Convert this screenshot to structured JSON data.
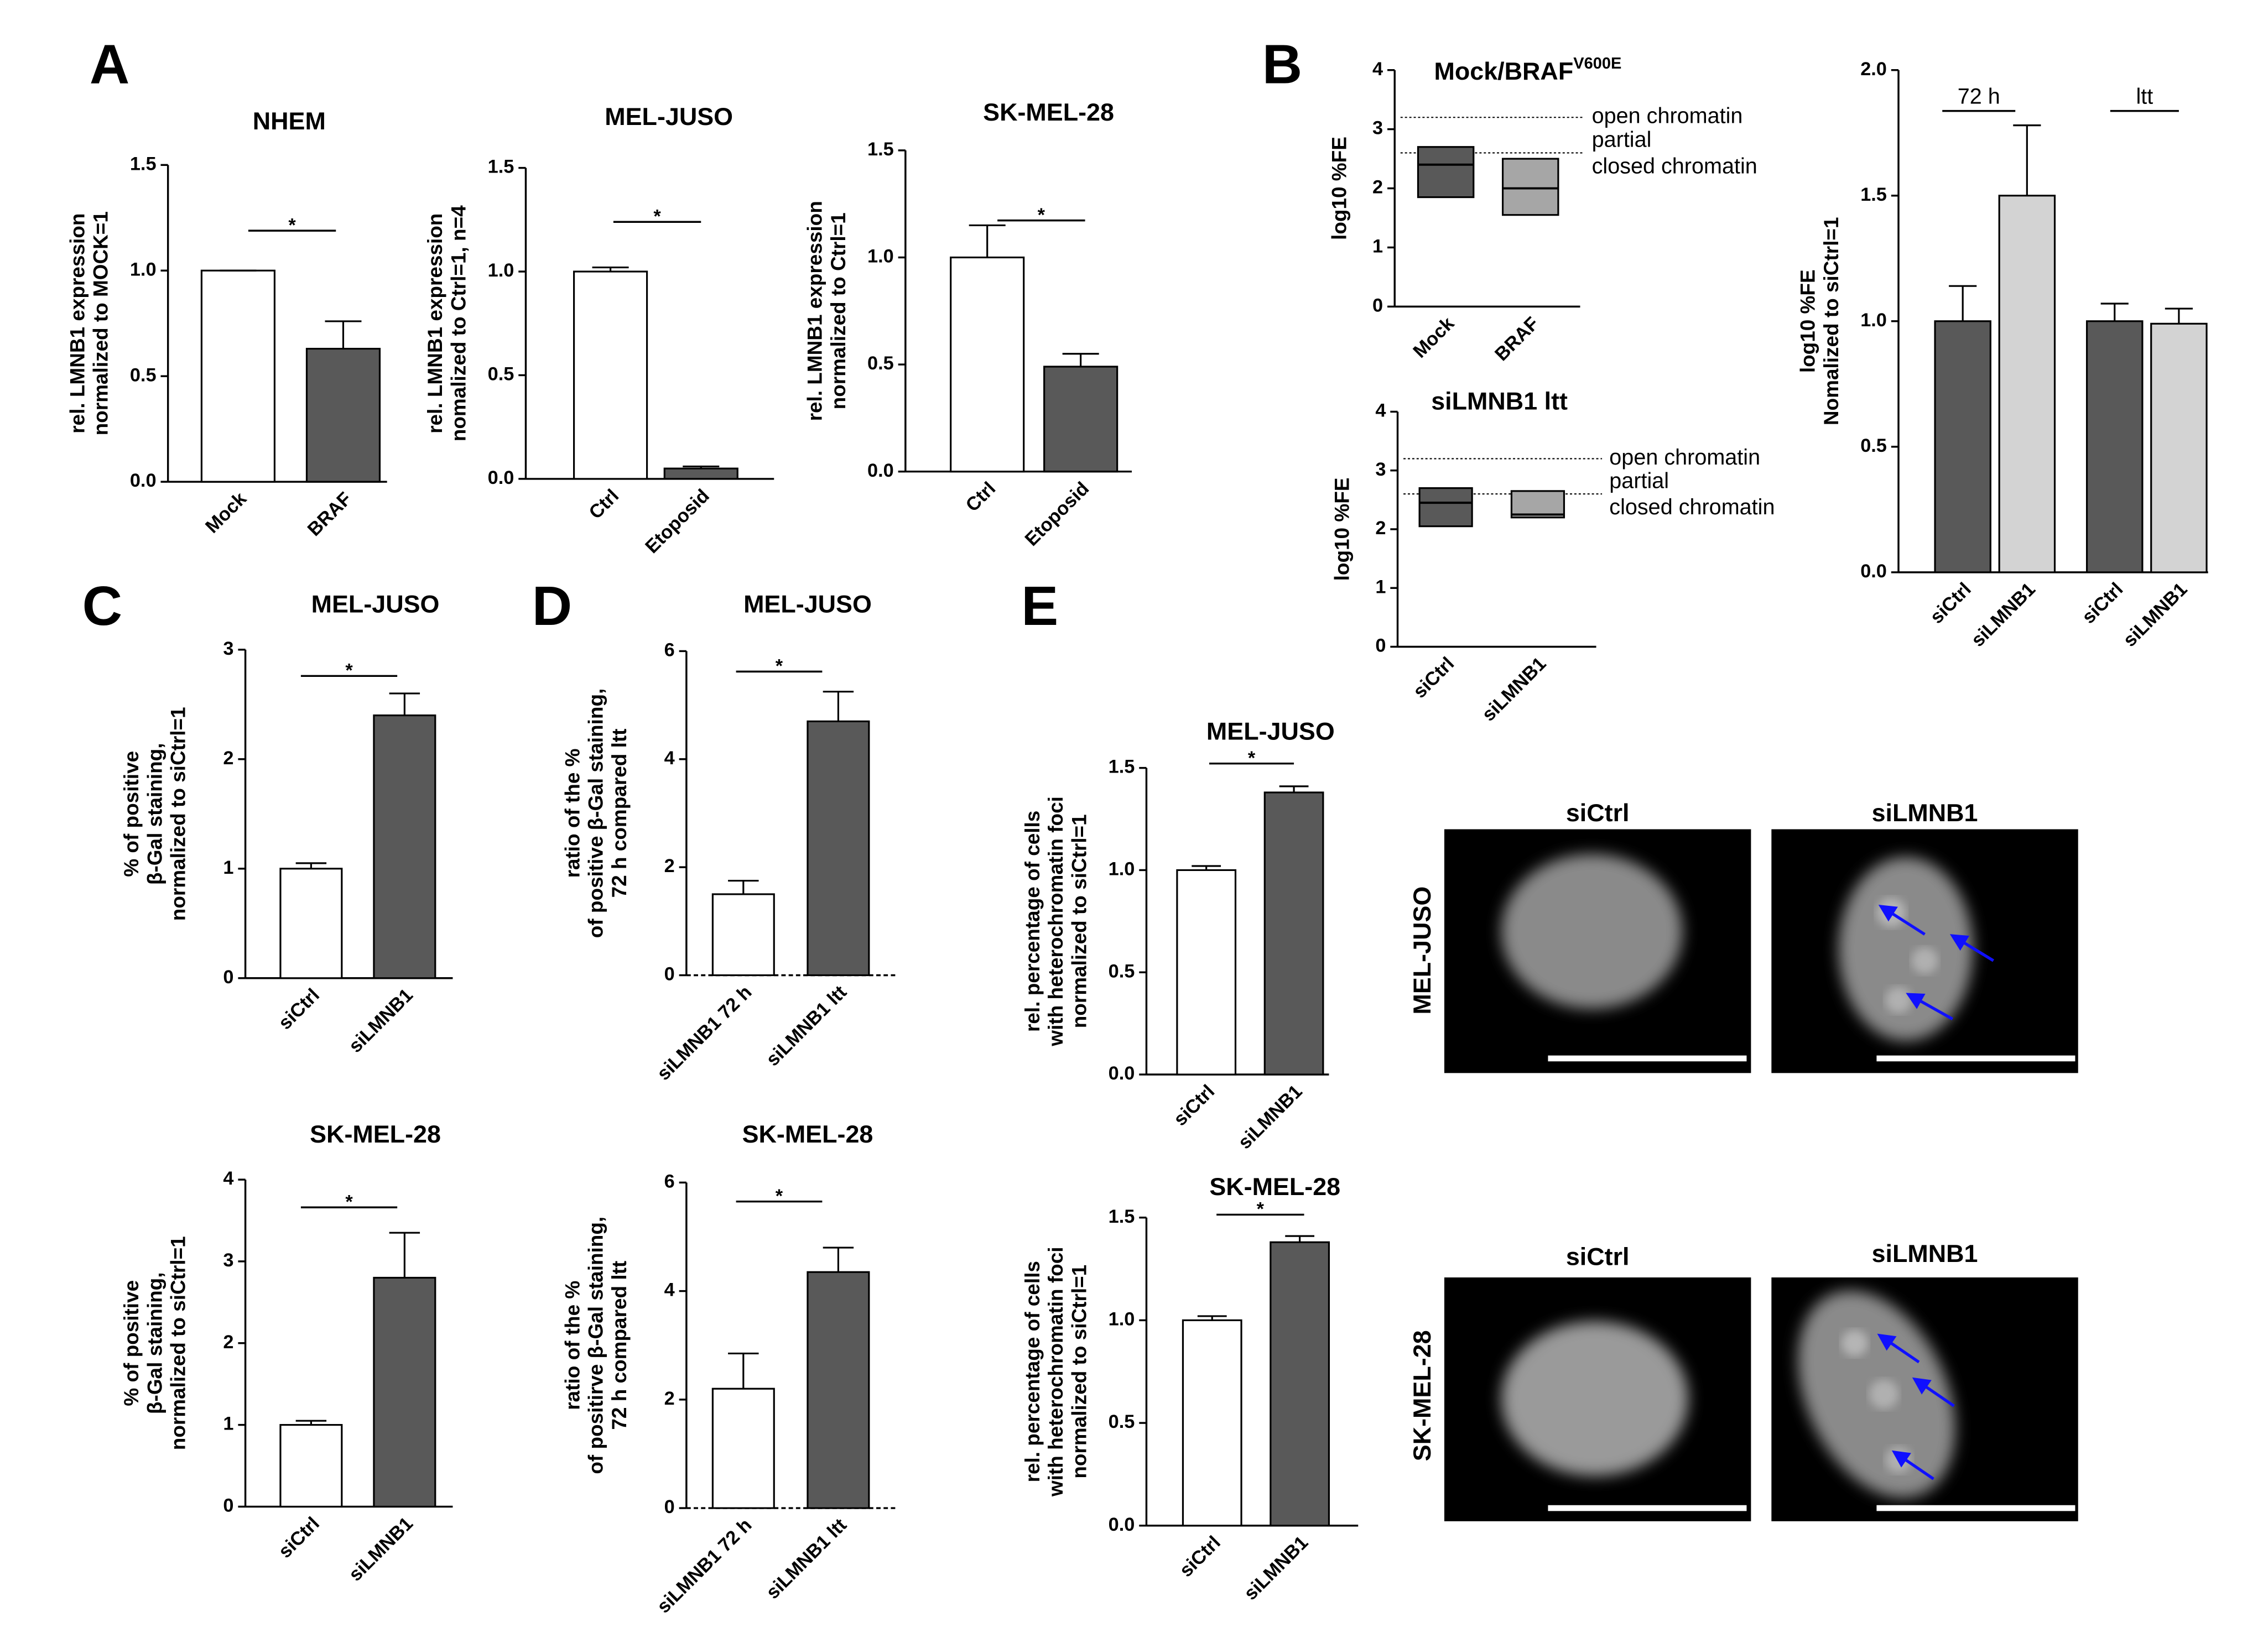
{
  "chart_data": [
    {
      "type": "bar",
      "panel": "A",
      "title": "NHEM",
      "ylabel": [
        "rel. LMNB1 expression",
        "normalized to MOCK=1"
      ],
      "categories": [
        "Mock",
        "BRAF"
      ],
      "values": [
        1.0,
        0.63
      ],
      "errors": [
        0,
        0.13
      ],
      "colors": [
        "#ffffff",
        "#595959"
      ],
      "ylim": [
        0,
        1.5
      ],
      "yticks": [
        {
          "value": 0,
          "label": "0.0"
        },
        {
          "value": 0.5,
          "label": "0.5"
        },
        {
          "value": 1,
          "label": "1.0"
        },
        {
          "value": 1.5,
          "label": "1.5"
        }
      ],
      "annotation": "*"
    },
    {
      "type": "bar",
      "title": "MEL-JUSO",
      "ylabel": [
        "rel. LMNB1 expression",
        "nomalized to Ctrl=1, n=4"
      ],
      "categories": [
        "Ctrl",
        "Etoposid"
      ],
      "values": [
        1.0,
        0.05
      ],
      "errors": [
        0.02,
        0.01
      ],
      "colors": [
        "#ffffff",
        "#595959"
      ],
      "ylim": [
        0,
        1.5
      ],
      "yticks": [
        {
          "value": 0,
          "label": "0.0"
        },
        {
          "value": 0.5,
          "label": "0.5"
        },
        {
          "value": 1,
          "label": "1.0"
        },
        {
          "value": 1.5,
          "label": "1.5"
        }
      ],
      "annotation": "*"
    },
    {
      "type": "bar",
      "title": "SK-MEL-28",
      "ylabel": [
        "rel. LMNB1 expression",
        "normalized to Ctrl=1"
      ],
      "categories": [
        "Ctrl",
        "Etoposid"
      ],
      "values": [
        1.0,
        0.49
      ],
      "errors": [
        0.15,
        0.06
      ],
      "colors": [
        "#ffffff",
        "#595959"
      ],
      "ylim": [
        0,
        1.5
      ],
      "yticks": [
        {
          "value": 0,
          "label": "0.0"
        },
        {
          "value": 0.5,
          "label": "0.5"
        },
        {
          "value": 1,
          "label": "1.0"
        },
        {
          "value": 1.5,
          "label": "1.5"
        }
      ],
      "annotation": "*"
    },
    {
      "type": "box",
      "panel": "B",
      "title": "Mock/BRAF",
      "title_superscript": "V600E",
      "ylabel": [
        "log10 %FE"
      ],
      "categories": [
        "Mock",
        "BRAF"
      ],
      "low": [
        1.85,
        1.55
      ],
      "median": [
        2.4,
        2.0
      ],
      "high": [
        2.7,
        2.5
      ],
      "colors": [
        "#595959",
        "#a6a6a6"
      ],
      "ylim": [
        0,
        4
      ],
      "yticks": [
        0,
        1,
        2,
        3,
        4
      ],
      "reference_lines": [
        3.2,
        2.6
      ],
      "zone_labels": [
        "open chromatin",
        "partial",
        "closed chromatin"
      ]
    },
    {
      "type": "box",
      "title": "siLMNB1 ltt",
      "ylabel": [
        "log10 %FE"
      ],
      "categories": [
        "siCtrl",
        "siLMNB1"
      ],
      "low": [
        2.05,
        2.2
      ],
      "median": [
        2.45,
        2.25
      ],
      "high": [
        2.7,
        2.65
      ],
      "colors": [
        "#595959",
        "#a6a6a6"
      ],
      "ylim": [
        0,
        4
      ],
      "yticks": [
        0,
        1,
        2,
        3,
        4
      ],
      "reference_lines": [
        3.2,
        2.6
      ],
      "zone_labels": [
        "open chromatin",
        "partial",
        "closed chromatin"
      ]
    },
    {
      "type": "bar",
      "ylabel": [
        "log10 %FE",
        "Nomalized to siCtrl=1"
      ],
      "groups": [
        "72 h",
        "ltt"
      ],
      "categories": [
        "siCtrl",
        "siLMNB1",
        "siCtrl",
        "siLMNB1"
      ],
      "values": [
        1.0,
        1.5,
        1.0,
        0.99
      ],
      "errors": [
        0.14,
        0.28,
        0.07,
        0.06
      ],
      "colors": [
        "#595959",
        "#d3d3d3",
        "#595959",
        "#d3d3d3"
      ],
      "ylim": [
        0,
        2
      ],
      "yticks": [
        {
          "value": 0,
          "label": "0.0"
        },
        {
          "value": 0.5,
          "label": "0.5"
        },
        {
          "value": 1,
          "label": "1.0"
        },
        {
          "value": 1.5,
          "label": "1.5"
        },
        {
          "value": 2,
          "label": "2.0"
        }
      ]
    },
    {
      "type": "bar",
      "panel": "C",
      "title": "MEL-JUSO",
      "ylabel": [
        "% of positive",
        "β-Gal staining,",
        "normalized to siCtrl=1"
      ],
      "categories": [
        "siCtrl",
        "siLMNB1"
      ],
      "values": [
        1.0,
        2.4
      ],
      "errors": [
        0.05,
        0.2
      ],
      "colors": [
        "#ffffff",
        "#595959"
      ],
      "ylim": [
        0,
        3
      ],
      "yticks": [
        0,
        1,
        2,
        3
      ],
      "annotation": "*"
    },
    {
      "type": "bar",
      "title": "SK-MEL-28",
      "ylabel": [
        "% of positive",
        "β-Gal staining,",
        "normalized to siCtrl=1"
      ],
      "categories": [
        "siCtrl",
        "siLMNB1"
      ],
      "values": [
        1.0,
        2.8
      ],
      "errors": [
        0.05,
        0.55
      ],
      "colors": [
        "#ffffff",
        "#595959"
      ],
      "ylim": [
        0,
        4
      ],
      "yticks": [
        0,
        1,
        2,
        3,
        4
      ],
      "annotation": "*"
    },
    {
      "type": "bar",
      "panel": "D",
      "title": "MEL-JUSO",
      "ylabel": [
        "ratio of the %",
        "of positive β-Gal staining,",
        "72 h compared ltt"
      ],
      "categories": [
        "siLMNB1 72 h",
        "siLMNB1 ltt"
      ],
      "values": [
        1.5,
        4.7
      ],
      "errors": [
        0.25,
        0.55
      ],
      "colors": [
        "#ffffff",
        "#595959"
      ],
      "ylim": [
        0,
        6
      ],
      "yticks": [
        0,
        2,
        4,
        6
      ],
      "annotation": "*"
    },
    {
      "type": "bar",
      "title": "SK-MEL-28",
      "ylabel": [
        "ratio of the %",
        "of positirve β-Gal staining,",
        "72 h compared ltt"
      ],
      "categories": [
        "siLMNB1 72 h",
        "siLMNB1 ltt"
      ],
      "values": [
        2.2,
        4.35
      ],
      "errors": [
        0.65,
        0.45
      ],
      "colors": [
        "#ffffff",
        "#595959"
      ],
      "ylim": [
        0,
        6
      ],
      "yticks": [
        0,
        2,
        4,
        6
      ],
      "annotation": "*"
    },
    {
      "type": "bar",
      "panel": "E",
      "title": "MEL-JUSO",
      "ylabel": [
        "rel. percentage of cells",
        "with heterochromatin foci",
        "normalized to siCtrl=1"
      ],
      "categories": [
        "siCtrl",
        "siLMNB1"
      ],
      "values": [
        1.0,
        1.38
      ],
      "errors": [
        0.02,
        0.03
      ],
      "colors": [
        "#ffffff",
        "#595959"
      ],
      "ylim": [
        0,
        1.5
      ],
      "yticks": [
        {
          "value": 0,
          "label": "0.0"
        },
        {
          "value": 0.5,
          "label": "0.5"
        },
        {
          "value": 1,
          "label": "1.0"
        },
        {
          "value": 1.5,
          "label": "1.5"
        }
      ],
      "annotation": "*"
    },
    {
      "type": "bar",
      "title": "SK-MEL-28",
      "ylabel": [
        "rel. percentage of cells",
        "with heterochromatin foci",
        "normalized to siCtrl=1"
      ],
      "categories": [
        "siCtrl",
        "siLMNB1"
      ],
      "values": [
        1.0,
        1.38
      ],
      "errors": [
        0.02,
        0.03
      ],
      "colors": [
        "#ffffff",
        "#595959"
      ],
      "ylim": [
        0,
        1.5
      ],
      "yticks": [
        {
          "value": 0,
          "label": "0.0"
        },
        {
          "value": 0.5,
          "label": "0.5"
        },
        {
          "value": 1,
          "label": "1.0"
        },
        {
          "value": 1.5,
          "label": "1.5"
        }
      ],
      "annotation": "*"
    }
  ],
  "micrographs": [
    {
      "label": "MEL-JUSO",
      "columns": [
        "siCtrl",
        "siLMNB1"
      ]
    },
    {
      "label": "SK-MEL-28",
      "columns": [
        "siCtrl",
        "siLMNB1"
      ]
    }
  ]
}
